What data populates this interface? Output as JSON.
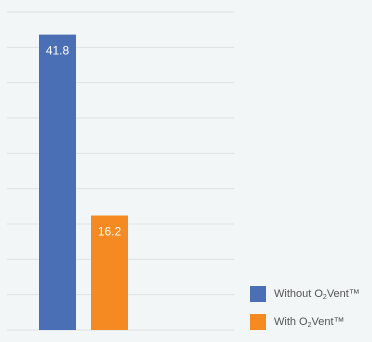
{
  "chart_data": {
    "type": "bar",
    "title": "",
    "xlabel": "",
    "ylabel": "",
    "ylim": [
      0,
      45
    ],
    "grid": true,
    "categories": [
      "Without O2Vent™",
      "With O2Vent™"
    ],
    "values": [
      41.8,
      16.2
    ],
    "data_labels": [
      "41.8",
      "16.2"
    ],
    "colors": [
      "#4a6fb5",
      "#f58a22"
    ],
    "legend": {
      "placement": "bottom-right",
      "entries": [
        {
          "prefix": "Without O",
          "sub": "2",
          "suffix": "Vent™",
          "color": "#4a6fb5"
        },
        {
          "prefix": "With O",
          "sub": "2",
          "suffix": "Vent™",
          "color": "#f58a22"
        }
      ]
    }
  }
}
